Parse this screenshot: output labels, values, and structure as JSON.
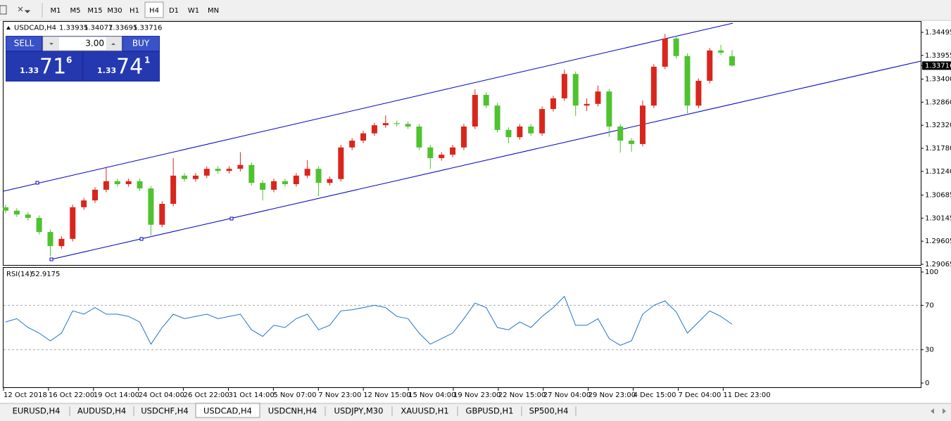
{
  "toolbar": {
    "timeframes": [
      "M1",
      "M5",
      "M15",
      "M30",
      "H1",
      "H4",
      "D1",
      "W1",
      "MN"
    ],
    "active_timeframe": 5
  },
  "trade_panel": {
    "sell": "SELL",
    "buy": "BUY",
    "lots": "3.00",
    "sell_price": {
      "prefix": "1.33",
      "big": "71",
      "small": "6"
    },
    "buy_price": {
      "prefix": "1.33",
      "big": "74",
      "small": "1"
    }
  },
  "chart_data": {
    "type": "candlestick",
    "symbol": "USDCAD,H4",
    "up_color": "#d9261c",
    "down_color": "#4fc22f",
    "channel_color": "#0000c8",
    "open": [
      1.304,
      1.3032,
      1.3023,
      1.3015,
      1.2982,
      1.2949,
      1.2966,
      1.304,
      1.3056,
      1.3081,
      1.3101,
      1.3094,
      1.3101,
      1.3084,
      1.2999,
      1.3048,
      1.3114,
      1.3106,
      1.3114,
      1.313,
      1.3125,
      1.313,
      1.3139,
      1.3097,
      1.3081,
      1.3101,
      1.3094,
      1.3114,
      1.313,
      1.3097,
      1.3106,
      1.318,
      1.3196,
      1.3213,
      1.3232,
      1.3237,
      1.3235,
      1.3229,
      1.318,
      1.3155,
      1.3163,
      1.318,
      1.3229,
      1.3303,
      1.3278,
      1.3221,
      1.3204,
      1.3229,
      1.3213,
      1.327,
      1.3295,
      1.3352,
      1.3278,
      1.3282,
      1.3311,
      1.3229,
      1.3196,
      1.3188,
      1.3278,
      1.3369,
      1.3435,
      1.3394,
      1.3278,
      1.3336,
      1.3407,
      1.33935
    ],
    "high": [
      1.3046,
      1.3038,
      1.3029,
      1.3021,
      1.2988,
      1.2972,
      1.3046,
      1.3062,
      1.3087,
      1.3132,
      1.3107,
      1.3107,
      1.3107,
      1.309,
      1.3054,
      1.3155,
      1.312,
      1.312,
      1.3136,
      1.3136,
      1.3136,
      1.3169,
      1.3145,
      1.3103,
      1.3107,
      1.3107,
      1.312,
      1.315,
      1.3136,
      1.3112,
      1.3186,
      1.3202,
      1.3219,
      1.3238,
      1.3255,
      1.3243,
      1.3241,
      1.3235,
      1.3186,
      1.3169,
      1.3186,
      1.3235,
      1.3316,
      1.3309,
      1.3284,
      1.3227,
      1.3235,
      1.3235,
      1.3276,
      1.3301,
      1.3362,
      1.3358,
      1.3295,
      1.3325,
      1.3317,
      1.3235,
      1.3202,
      1.329,
      1.3375,
      1.3446,
      1.3441,
      1.34,
      1.3342,
      1.3413,
      1.342,
      1.34077
    ],
    "low": [
      1.3026,
      1.3017,
      1.3009,
      1.2976,
      1.2925,
      1.2943,
      1.296,
      1.3034,
      1.305,
      1.3075,
      1.3088,
      1.3088,
      1.3078,
      1.2974,
      1.2993,
      1.3042,
      1.31,
      1.31,
      1.3108,
      1.3119,
      1.3119,
      1.3124,
      1.3091,
      1.3056,
      1.3075,
      1.3088,
      1.3088,
      1.3108,
      1.3066,
      1.3091,
      1.31,
      1.3174,
      1.319,
      1.3207,
      1.3226,
      1.3229,
      1.3223,
      1.3174,
      1.313,
      1.3149,
      1.3157,
      1.3174,
      1.3223,
      1.3272,
      1.3215,
      1.319,
      1.3198,
      1.3207,
      1.3207,
      1.3264,
      1.3289,
      1.3254,
      1.3265,
      1.3276,
      1.3205,
      1.3168,
      1.317,
      1.3182,
      1.3272,
      1.3363,
      1.3388,
      1.326,
      1.3272,
      1.333,
      1.3396,
      1.33695
    ],
    "close": [
      1.3032,
      1.3023,
      1.3015,
      1.2982,
      1.2949,
      1.2966,
      1.304,
      1.3056,
      1.3081,
      1.3101,
      1.3094,
      1.3101,
      1.3084,
      1.2999,
      1.3048,
      1.3114,
      1.3106,
      1.3114,
      1.313,
      1.3125,
      1.313,
      1.3139,
      1.3097,
      1.3081,
      1.3101,
      1.3094,
      1.3114,
      1.313,
      1.3097,
      1.3106,
      1.318,
      1.3196,
      1.3213,
      1.3232,
      1.3237,
      1.3235,
      1.3229,
      1.318,
      1.3155,
      1.3163,
      1.318,
      1.3229,
      1.3303,
      1.3278,
      1.3221,
      1.3204,
      1.3229,
      1.3213,
      1.327,
      1.3295,
      1.3352,
      1.3278,
      1.3282,
      1.3311,
      1.3229,
      1.3196,
      1.3188,
      1.3278,
      1.3369,
      1.3435,
      1.3394,
      1.3278,
      1.3336,
      1.3407,
      1.3402,
      1.33716
    ],
    "ylim": [
      1.29032,
      1.34742
    ],
    "yticks": [
      {
        "value": 1.34495,
        "label": "1.34495"
      },
      {
        "value": 1.33955,
        "label": "1.33955"
      },
      {
        "value": 1.334,
        "label": "1.33400"
      },
      {
        "value": 1.3286,
        "label": "1.32860"
      },
      {
        "value": 1.3232,
        "label": "1.32320"
      },
      {
        "value": 1.3178,
        "label": "1.31780"
      },
      {
        "value": 1.3124,
        "label": "1.31240"
      },
      {
        "value": 1.30685,
        "label": "1.30685"
      },
      {
        "value": 1.30145,
        "label": "1.30145"
      },
      {
        "value": 1.29605,
        "label": "1.29605"
      },
      {
        "value": 1.29065,
        "label": "1.29065"
      }
    ],
    "time_labels": [
      "12 Oct 2018",
      "16 Oct 22:00",
      "19 Oct 14:00",
      "24 Oct 04:00",
      "26 Oct 22:00",
      "31 Oct 14:00",
      "5 Nov 07:00",
      "7 Nov 23:00",
      "12 Nov 15:00",
      "15 Nov 04:00",
      "19 Nov 23:00",
      "22 Nov 15:00",
      "27 Nov 04:00",
      "29 Nov 23:00",
      "4 Dec 15:00",
      "7 Dec 04:00",
      "11 Dec 23:00"
    ],
    "rsi": {
      "label": "RSI(14)",
      "color": "#1e73d2",
      "ylim": [
        0,
        100
      ],
      "yticks": [
        100,
        70,
        30,
        0
      ],
      "values": [
        55,
        58,
        50,
        45,
        38,
        45,
        65,
        62,
        68,
        62,
        62,
        60,
        55,
        35,
        50,
        62,
        58,
        60,
        62,
        58,
        60,
        62,
        48,
        42,
        52,
        50,
        58,
        62,
        48,
        52,
        65,
        66,
        68,
        70,
        68,
        60,
        58,
        45,
        35,
        40,
        45,
        58,
        72,
        68,
        50,
        48,
        55,
        50,
        60,
        68,
        78,
        52,
        52,
        58,
        40,
        34,
        38,
        62,
        70,
        74,
        64,
        45,
        55,
        65,
        60,
        52.9175
      ]
    }
  },
  "tabs": [
    "EURUSD,H4",
    "AUDUSD,H4",
    "USDCHF,H4",
    "USDCAD,H4",
    "USDCNH,H4",
    "USDJPY,M30",
    "XAUUSD,H1",
    "GBPUSD,H1",
    "SP500,H4"
  ],
  "active_tab": 3
}
